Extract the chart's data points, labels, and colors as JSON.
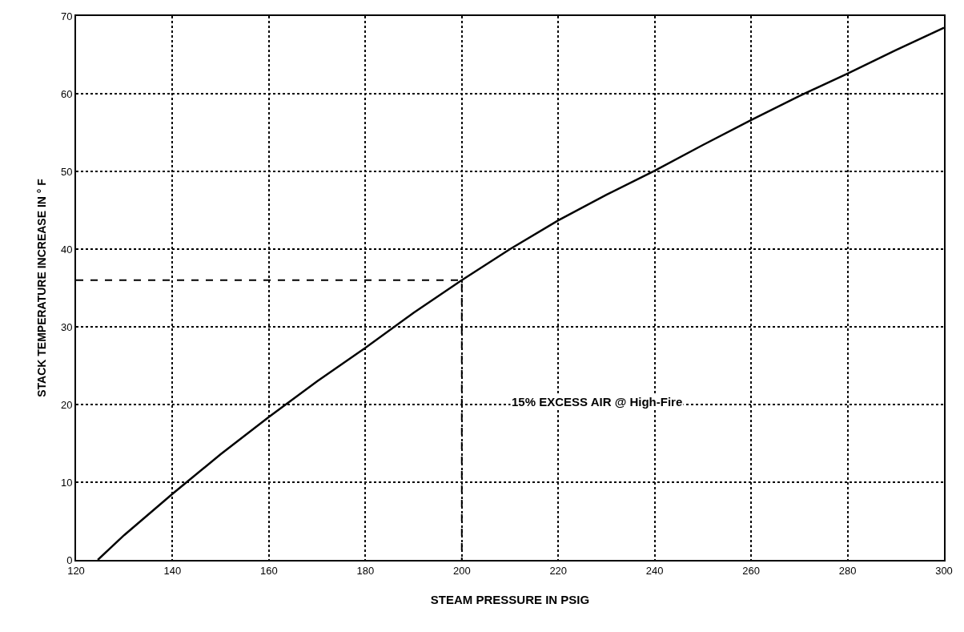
{
  "chart_data": {
    "type": "line",
    "xlabel": "STEAM PRESSURE IN PSIG",
    "ylabel": "STACK TEMPERATURE INCREASE IN ° F",
    "series": [
      {
        "color": "#000000",
        "line_style": "solid",
        "x": [
          124.5,
          130,
          140,
          150,
          160,
          170,
          180,
          190,
          200,
          210,
          220,
          230,
          240,
          250,
          260,
          270,
          280,
          290,
          300
        ],
        "values": [
          0,
          3.2,
          8.5,
          13.6,
          18.4,
          23,
          27.3,
          31.8,
          36,
          40,
          43.7,
          47,
          50.1,
          53.4,
          56.6,
          59.7,
          62.6,
          65.6,
          68.5
        ]
      },
      {
        "color": "#000000",
        "line_style": "dashed",
        "x": [
          120,
          200,
          200
        ],
        "values": [
          36,
          36,
          0
        ]
      }
    ],
    "annotations": [
      "15% EXCESS AIR @ High-Fire"
    ],
    "xlim": [
      120,
      300
    ],
    "xticks": [
      120,
      140,
      160,
      180,
      200,
      220,
      240,
      260,
      280,
      300
    ],
    "ylim": [
      0,
      70
    ],
    "yticks": [
      0,
      10,
      20,
      30,
      40,
      50,
      60,
      70
    ],
    "grid": true,
    "marker": "none"
  }
}
